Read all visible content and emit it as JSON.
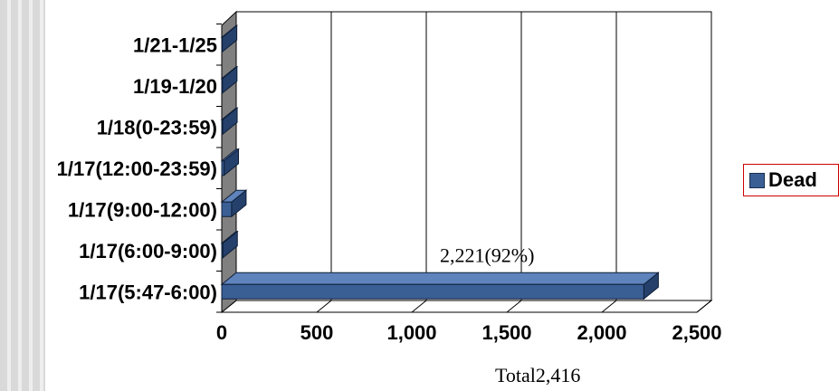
{
  "chart_data": {
    "type": "bar",
    "orientation": "horizontal",
    "style": "3d",
    "categories": [
      "1/17(5:47-6:00)",
      "1/17(6:00-9:00)",
      "1/17(9:00-12:00)",
      "1/17(12:00-23:59)",
      "1/18(0-23:59)",
      "1/19-1/20",
      "1/21-1/25"
    ],
    "series": [
      {
        "name": "Dead",
        "values": [
          2221,
          6,
          52,
          12,
          5,
          4,
          3
        ],
        "color": "#3a5f95"
      }
    ],
    "xlim": [
      0,
      2500
    ],
    "xticks": [
      "0",
      "500",
      "1,000",
      "1,500",
      "2,000",
      "2,500"
    ],
    "grid": true,
    "legend_position": "right",
    "annotations": [
      {
        "text": "2,221(92%)",
        "category": "1/17(5:47-6:00)"
      }
    ],
    "footer": "Total2,416"
  }
}
